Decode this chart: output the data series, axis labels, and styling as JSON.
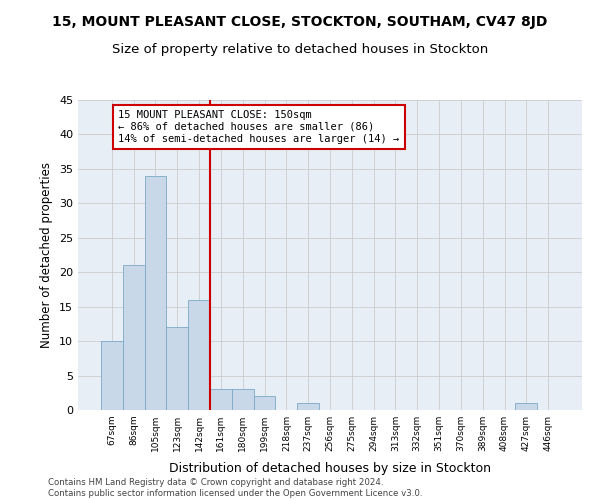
{
  "title": "15, MOUNT PLEASANT CLOSE, STOCKTON, SOUTHAM, CV47 8JD",
  "subtitle": "Size of property relative to detached houses in Stockton",
  "xlabel": "Distribution of detached houses by size in Stockton",
  "ylabel": "Number of detached properties",
  "categories": [
    "67sqm",
    "86sqm",
    "105sqm",
    "123sqm",
    "142sqm",
    "161sqm",
    "180sqm",
    "199sqm",
    "218sqm",
    "237sqm",
    "256sqm",
    "275sqm",
    "294sqm",
    "313sqm",
    "332sqm",
    "351sqm",
    "370sqm",
    "389sqm",
    "408sqm",
    "427sqm",
    "446sqm"
  ],
  "values": [
    10,
    21,
    34,
    12,
    16,
    3,
    3,
    2,
    0,
    1,
    0,
    0,
    0,
    0,
    0,
    0,
    0,
    0,
    0,
    1,
    0
  ],
  "bar_color": "#c8d8e8",
  "bar_edge_color": "#7ca8c8",
  "vline_x": 4.5,
  "vline_color": "#cc0000",
  "annotation_text": "15 MOUNT PLEASANT CLOSE: 150sqm\n← 86% of detached houses are smaller (86)\n14% of semi-detached houses are larger (14) →",
  "annotation_box_color": "#cc0000",
  "ylim": [
    0,
    45
  ],
  "yticks": [
    0,
    5,
    10,
    15,
    20,
    25,
    30,
    35,
    40,
    45
  ],
  "grid_color": "#cccccc",
  "bg_color": "#e8eef5",
  "footer": "Contains HM Land Registry data © Crown copyright and database right 2024.\nContains public sector information licensed under the Open Government Licence v3.0.",
  "title_fontsize": 10,
  "subtitle_fontsize": 9.5,
  "xlabel_fontsize": 9,
  "ylabel_fontsize": 8.5,
  "ann_fontsize": 7.5
}
